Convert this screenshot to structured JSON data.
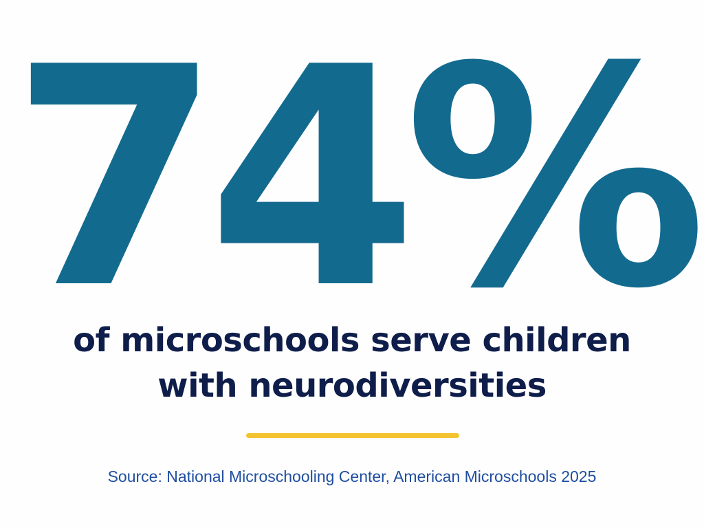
{
  "stat": {
    "value": "74%"
  },
  "headline": {
    "line1": "of microschools serve children",
    "line2": "with neurodiversities"
  },
  "source": {
    "text": "Source: National Microschooling Center, American Microschools 2025"
  },
  "colors": {
    "stat": "#136a8f",
    "headline": "#0f1d4a",
    "divider": "#f4c430",
    "source": "#1f4ea0",
    "background": "#fefefe"
  }
}
